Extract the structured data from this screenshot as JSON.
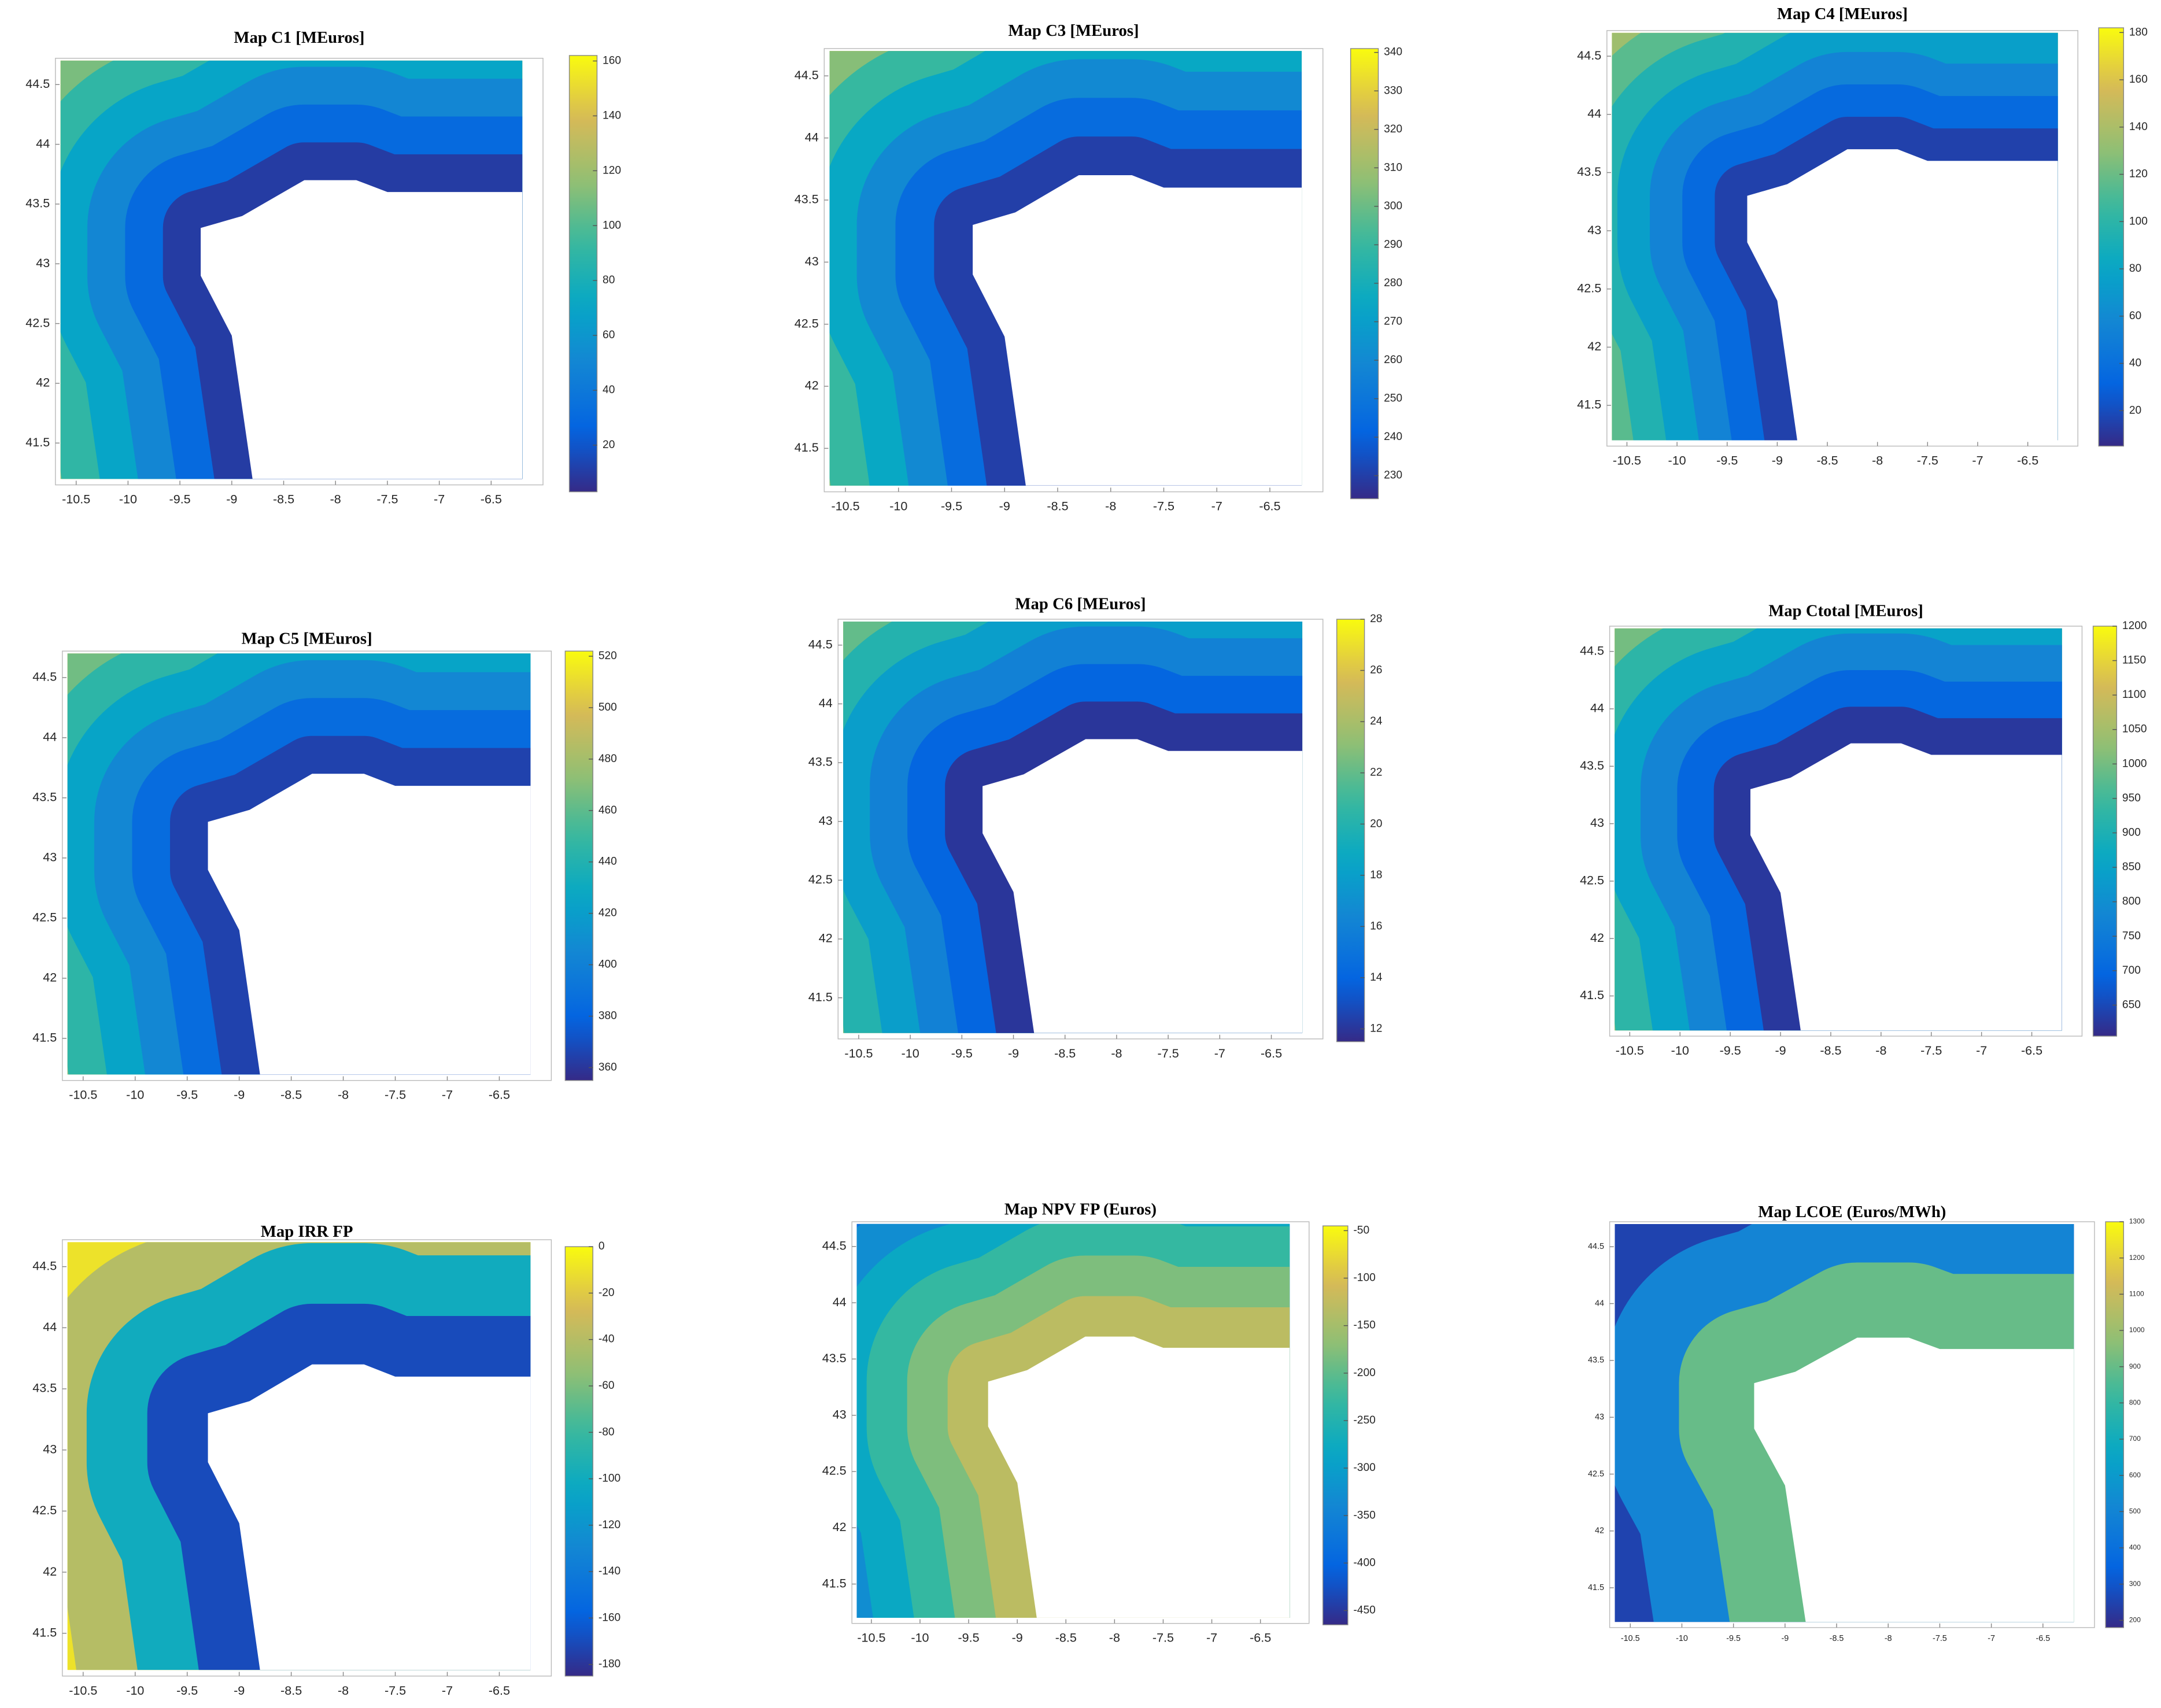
{
  "chart_data": [
    {
      "type": "contour",
      "title": "Map C1 [MEuros]",
      "xlim": [
        -10.7,
        -6.0
      ],
      "ylim": [
        41.15,
        44.72
      ],
      "xticks": [
        -10.5,
        -10,
        -9.5,
        -9,
        -8.5,
        -8,
        -7.5,
        -7,
        -6.5
      ],
      "yticks": [
        41.5,
        42,
        42.5,
        43,
        43.5,
        44,
        44.5
      ],
      "levels": [
        10,
        30,
        50,
        70,
        90,
        110,
        130,
        150
      ],
      "clim": [
        3,
        162
      ],
      "cticks": [
        20,
        40,
        60,
        80,
        100,
        120,
        140,
        160
      ],
      "colormap": "parula"
    },
    {
      "type": "contour",
      "title": "Map C3 [MEuros]",
      "xlim": [
        -10.7,
        -6.0
      ],
      "ylim": [
        41.15,
        44.72
      ],
      "xticks": [
        -10.5,
        -10,
        -9.5,
        -9,
        -8.5,
        -8,
        -7.5,
        -7,
        -6.5
      ],
      "yticks": [
        41.5,
        42,
        42.5,
        43,
        43.5,
        44,
        44.5
      ],
      "levels": [
        230,
        245,
        260,
        275,
        290,
        305,
        320,
        335
      ],
      "clim": [
        224,
        341
      ],
      "cticks": [
        230,
        240,
        250,
        260,
        270,
        280,
        290,
        300,
        310,
        320,
        330,
        340
      ],
      "colormap": "parula"
    },
    {
      "type": "contour",
      "title": "Map C4 [MEuros]",
      "xlim": [
        -10.7,
        -6.0
      ],
      "ylim": [
        41.15,
        44.72
      ],
      "xticks": [
        -10.5,
        -10,
        -9.5,
        -9,
        -8.5,
        -8,
        -7.5,
        -7,
        -6.5
      ],
      "yticks": [
        41.5,
        42,
        42.5,
        43,
        43.5,
        44,
        44.5
      ],
      "levels": [
        15,
        35,
        55,
        75,
        95,
        115,
        135,
        155,
        175
      ],
      "clim": [
        5,
        182
      ],
      "cticks": [
        20,
        40,
        60,
        80,
        100,
        120,
        140,
        160,
        180
      ],
      "colormap": "parula"
    },
    {
      "type": "contour",
      "title": "Map C5 [MEuros]",
      "xlim": [
        -10.7,
        -6.0
      ],
      "ylim": [
        41.15,
        44.72
      ],
      "xticks": [
        -10.5,
        -10,
        -9.5,
        -9,
        -8.5,
        -8,
        -7.5,
        -7,
        -6.5
      ],
      "yticks": [
        41.5,
        42,
        42.5,
        43,
        43.5,
        44,
        44.5
      ],
      "levels": [
        365,
        385,
        405,
        425,
        445,
        465,
        485,
        505
      ],
      "clim": [
        355,
        522
      ],
      "cticks": [
        360,
        380,
        400,
        420,
        440,
        460,
        480,
        500,
        520
      ],
      "colormap": "parula"
    },
    {
      "type": "contour",
      "title": "Map C6 [MEuros]",
      "xlim": [
        -10.7,
        -6.0
      ],
      "ylim": [
        41.15,
        44.72
      ],
      "xticks": [
        -10.5,
        -10,
        -9.5,
        -9,
        -8.5,
        -8,
        -7.5,
        -7,
        -6.5
      ],
      "yticks": [
        41.5,
        42,
        42.5,
        43,
        43.5,
        44,
        44.5
      ],
      "levels": [
        12,
        14,
        16,
        18,
        20,
        22,
        24,
        26
      ],
      "clim": [
        11.5,
        28
      ],
      "cticks": [
        12,
        14,
        16,
        18,
        20,
        22,
        24,
        26,
        28
      ],
      "colormap": "parula"
    },
    {
      "type": "contour",
      "title": "Map Ctotal [MEuros]",
      "xlim": [
        -10.7,
        -6.0
      ],
      "ylim": [
        41.15,
        44.72
      ],
      "xticks": [
        -10.5,
        -10,
        -9.5,
        -9,
        -8.5,
        -8,
        -7.5,
        -7,
        -6.5
      ],
      "yticks": [
        41.5,
        42,
        42.5,
        43,
        43.5,
        44,
        44.5
      ],
      "levels": [
        625,
        700,
        775,
        850,
        925,
        1000,
        1075,
        1150
      ],
      "clim": [
        605,
        1200
      ],
      "cticks": [
        650,
        700,
        750,
        800,
        850,
        900,
        950,
        1000,
        1050,
        1100,
        1150,
        1200
      ],
      "colormap": "parula"
    },
    {
      "type": "contour",
      "title": "Map IRR FP",
      "xlim": [
        -10.7,
        -6.0
      ],
      "ylim": [
        41.15,
        44.72
      ],
      "xticks": [
        -10.5,
        -10,
        -9.5,
        -9,
        -8.5,
        -8,
        -7.5,
        -7,
        -6.5
      ],
      "yticks": [
        41.5,
        42,
        42.5,
        43,
        43.5,
        44,
        44.5
      ],
      "levels": [
        -170,
        -100,
        -40,
        -10,
        -5
      ],
      "clim": [
        -185,
        0
      ],
      "cticks": [
        -180,
        -160,
        -140,
        -120,
        -100,
        -80,
        -60,
        -40,
        -20,
        0
      ],
      "colormap": "parula"
    },
    {
      "type": "contour",
      "title": "Map NPV FP (Euros)",
      "xlim": [
        -10.7,
        -6.0
      ],
      "ylim": [
        41.15,
        44.72
      ],
      "xticks": [
        -10.5,
        -10,
        -9.5,
        -9,
        -8.5,
        -8,
        -7.5,
        -7,
        -6.5
      ],
      "yticks": [
        41.5,
        42,
        42.5,
        43,
        43.5,
        44,
        44.5
      ],
      "levels": [
        -130,
        -180,
        -230,
        -280,
        -330,
        -380,
        -430
      ],
      "clim": [
        -465,
        -45
      ],
      "cticks": [
        -450,
        -400,
        -350,
        -300,
        -250,
        -200,
        -150,
        -100,
        -50
      ],
      "colormap": "parula"
    },
    {
      "type": "contour",
      "title": "Map LCOE (Euros/MWh)",
      "xlim": [
        -10.7,
        -6.0
      ],
      "ylim": [
        41.15,
        44.72
      ],
      "xticks": [
        -10.5,
        -10,
        -9.5,
        -9,
        -8.5,
        -8,
        -7.5,
        -7,
        -6.5
      ],
      "yticks": [
        41.5,
        42,
        42.5,
        43,
        43.5,
        44,
        44.5
      ],
      "levels": [
        900,
        500,
        250,
        200
      ],
      "clim": [
        180,
        1300
      ],
      "cticks": [
        200,
        300,
        400,
        500,
        600,
        700,
        800,
        900,
        1000,
        1100,
        1200,
        1300
      ],
      "colormap": "parula"
    }
  ]
}
